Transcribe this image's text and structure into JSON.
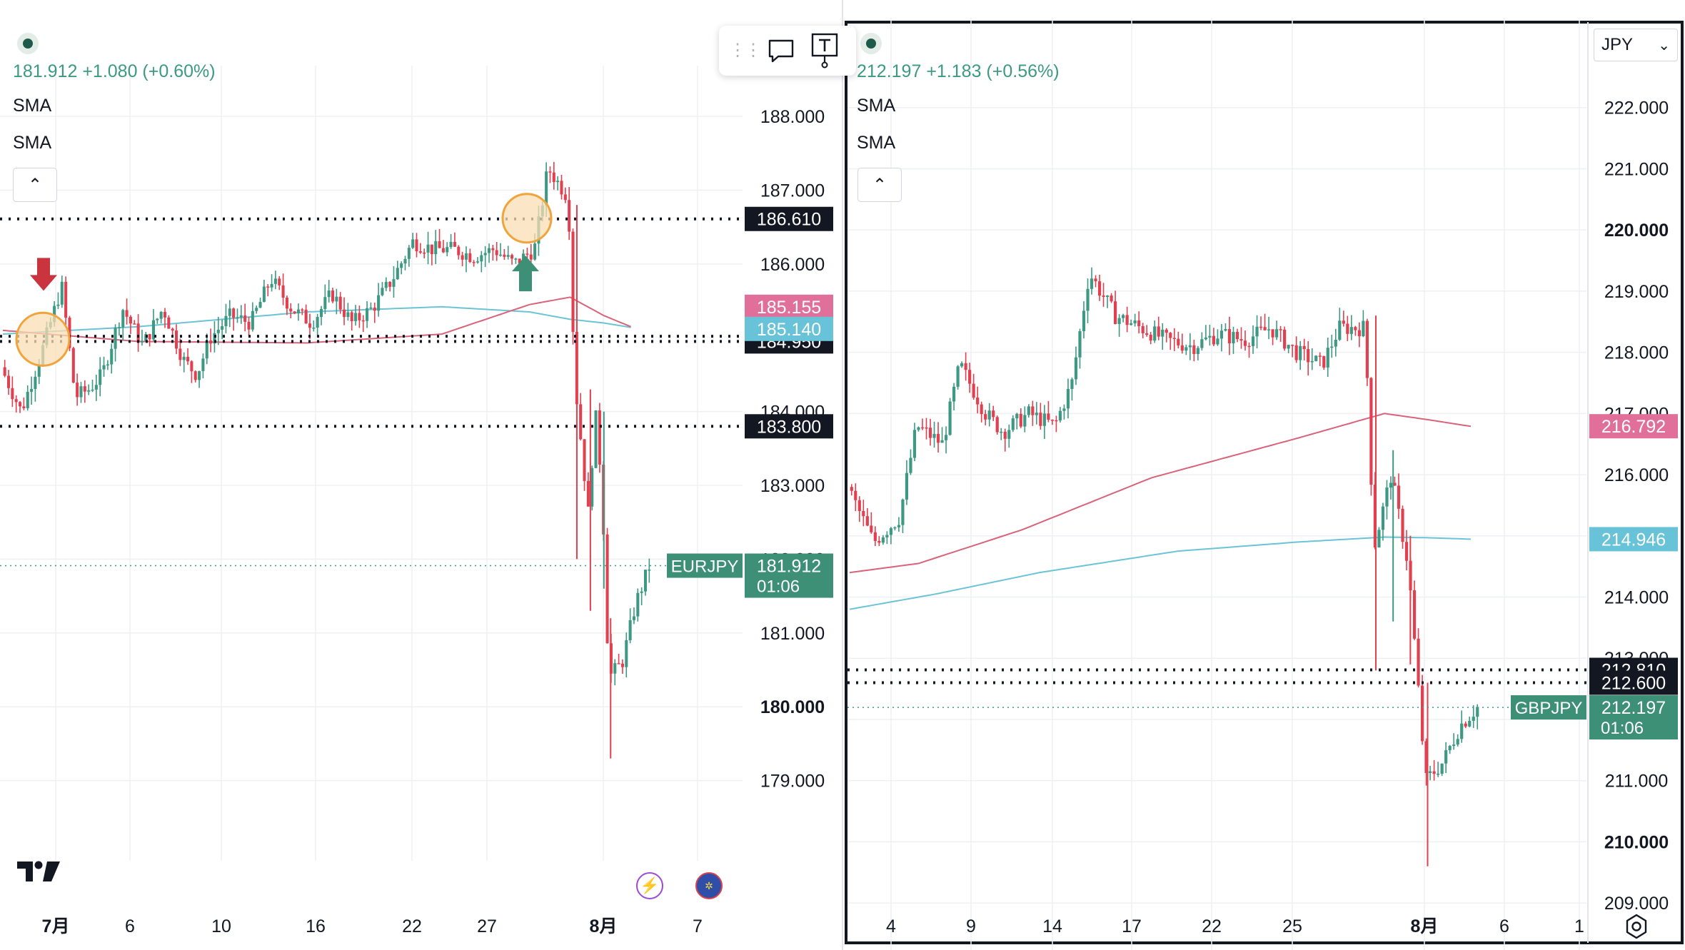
{
  "colors": {
    "up": "#3d9983",
    "down": "#e0404f",
    "sma_pink": "#d8637a",
    "sma_cyan": "#6bc4d6",
    "label_black": "#131722",
    "label_pink": "#e0709a",
    "label_cyan": "#68c3d8",
    "label_green": "#3d8f75",
    "grid": "#eef0f3",
    "circle_fill": "#f9ddb5",
    "circle_stroke": "#f0a43a"
  },
  "left": {
    "ohlc": "181.912  +1.080 (+0.60%)",
    "indicators": [
      "SMA",
      "SMA"
    ],
    "symbol_tag": "EURJPY",
    "price": "181.912",
    "countdown": "01:06",
    "hline_labels": [
      "186.610",
      "185.020",
      "184.950",
      "183.800"
    ],
    "sma_labels": [
      "185.155",
      "185.140"
    ],
    "event_icons": [
      "lightning-icon",
      "eu-flag-icon"
    ]
  },
  "right": {
    "ohlc": "212.197  +1.183 (+0.56%)",
    "indicators": [
      "SMA",
      "SMA"
    ],
    "currency": "JPY",
    "symbol_tag": "GBPJPY",
    "price": "212.197",
    "countdown": "01:06",
    "hline_labels": [
      "212.810",
      "212.600"
    ],
    "sma_labels": [
      "216.792",
      "214.946"
    ]
  },
  "toolbar": {
    "icons": [
      "drag-handle-icon",
      "comment-icon",
      "text-icon"
    ]
  },
  "chart_data": [
    {
      "type": "candlestick",
      "symbol": "EURJPY",
      "last": 181.912,
      "change": 1.08,
      "change_pct": 0.6,
      "ylim": [
        178.3,
        188.3
      ],
      "y_ticks": [
        "188.000",
        "187.000",
        "186.000",
        "184.000",
        "183.000",
        "182.000",
        "181.000",
        "180.000",
        "179.000"
      ],
      "y_ticks_bold": [
        "180.000"
      ],
      "x_ticks": [
        "7月",
        "6",
        "10",
        "16",
        "22",
        "27",
        "8月",
        "7"
      ],
      "x_ticks_bold": [
        "7月",
        "8月"
      ],
      "horizontal_lines": [
        186.61,
        185.02,
        184.95,
        183.8
      ],
      "sma_last": {
        "pink": 185.155,
        "cyan": 185.14
      },
      "annotations": [
        "down-arrow near 185.3 early July",
        "up-arrow near 186.3 late July"
      ],
      "path": [
        [
          0,
          184.6
        ],
        [
          3,
          184.0
        ],
        [
          6,
          184.8
        ],
        [
          9,
          185.7
        ],
        [
          11,
          184.2
        ],
        [
          13,
          184.3
        ],
        [
          15,
          184.5
        ],
        [
          18,
          185.4
        ],
        [
          21,
          184.9
        ],
        [
          24,
          185.4
        ],
        [
          27,
          184.7
        ],
        [
          29,
          184.5
        ],
        [
          31,
          185.0
        ],
        [
          34,
          185.3
        ],
        [
          37,
          185.2
        ],
        [
          40,
          185.8
        ],
        [
          43,
          185.4
        ],
        [
          46,
          185.2
        ],
        [
          49,
          185.6
        ],
        [
          52,
          185.2
        ],
        [
          55,
          185.4
        ],
        [
          58,
          185.8
        ],
        [
          61,
          186.3
        ],
        [
          64,
          186.2
        ],
        [
          67,
          186.2
        ],
        [
          70,
          186.1
        ],
        [
          73,
          186.2
        ],
        [
          76,
          186.0
        ],
        [
          79,
          186.2
        ],
        [
          81,
          187.3
        ],
        [
          84,
          186.9
        ],
        [
          85,
          184.4
        ],
        [
          87,
          182.6
        ],
        [
          88,
          184.0
        ],
        [
          89,
          183.0
        ],
        [
          90,
          180.4
        ],
        [
          92,
          180.6
        ],
        [
          94,
          181.4
        ],
        [
          96,
          181.9
        ]
      ],
      "sma_pink_path": [
        [
          0,
          185.1
        ],
        [
          20,
          184.95
        ],
        [
          45,
          184.93
        ],
        [
          65,
          185.05
        ],
        [
          78,
          185.45
        ],
        [
          84,
          185.55
        ],
        [
          89,
          185.3
        ],
        [
          93,
          185.15
        ]
      ],
      "sma_cyan_path": [
        [
          0,
          185.05
        ],
        [
          20,
          185.15
        ],
        [
          45,
          185.35
        ],
        [
          65,
          185.42
        ],
        [
          78,
          185.35
        ],
        [
          84,
          185.25
        ],
        [
          89,
          185.2
        ],
        [
          93,
          185.14
        ]
      ]
    },
    {
      "type": "candlestick",
      "symbol": "GBPJPY",
      "last": 212.197,
      "change": 1.183,
      "change_pct": 0.56,
      "ylim": [
        208.5,
        223.0
      ],
      "y_ticks": [
        "222.000",
        "221.000",
        "220.000",
        "219.000",
        "218.000",
        "217.000",
        "216.000",
        "215.000",
        "214.000",
        "213.000",
        "212.000",
        "211.000",
        "210.000",
        "209.000"
      ],
      "y_ticks_bold": [
        "220.000",
        "210.000"
      ],
      "x_ticks": [
        "4",
        "9",
        "14",
        "17",
        "22",
        "25",
        "8月",
        "6",
        "1"
      ],
      "x_ticks_bold": [
        "8月"
      ],
      "horizontal_lines": [
        212.81,
        212.6
      ],
      "sma_last": {
        "pink": 216.792,
        "cyan": 214.946
      },
      "path": [
        [
          0,
          215.8
        ],
        [
          3,
          214.9
        ],
        [
          6,
          215.3
        ],
        [
          8,
          216.8
        ],
        [
          11,
          216.5
        ],
        [
          13,
          217.8
        ],
        [
          16,
          217.0
        ],
        [
          18,
          216.7
        ],
        [
          21,
          217.0
        ],
        [
          24,
          216.8
        ],
        [
          26,
          217.5
        ],
        [
          28,
          219.3
        ],
        [
          31,
          218.6
        ],
        [
          34,
          218.4
        ],
        [
          37,
          218.2
        ],
        [
          40,
          218.1
        ],
        [
          43,
          218.3
        ],
        [
          46,
          218.2
        ],
        [
          49,
          218.4
        ],
        [
          52,
          218.0
        ],
        [
          55,
          217.8
        ],
        [
          57,
          218.4
        ],
        [
          60,
          218.4
        ],
        [
          61,
          214.8
        ],
        [
          63,
          216.0
        ],
        [
          65,
          214.5
        ],
        [
          67,
          211.0
        ],
        [
          69,
          211.3
        ],
        [
          71,
          211.9
        ],
        [
          73,
          212.2
        ]
      ],
      "sma_pink_path": [
        [
          0,
          214.4
        ],
        [
          8,
          214.55
        ],
        [
          20,
          215.1
        ],
        [
          35,
          215.95
        ],
        [
          52,
          216.6
        ],
        [
          62,
          217.0
        ],
        [
          67,
          216.9
        ],
        [
          72,
          216.79
        ]
      ],
      "sma_cyan_path": [
        [
          0,
          213.8
        ],
        [
          10,
          214.05
        ],
        [
          22,
          214.4
        ],
        [
          38,
          214.75
        ],
        [
          52,
          214.9
        ],
        [
          62,
          214.98
        ],
        [
          67,
          214.97
        ],
        [
          72,
          214.946
        ]
      ]
    }
  ]
}
